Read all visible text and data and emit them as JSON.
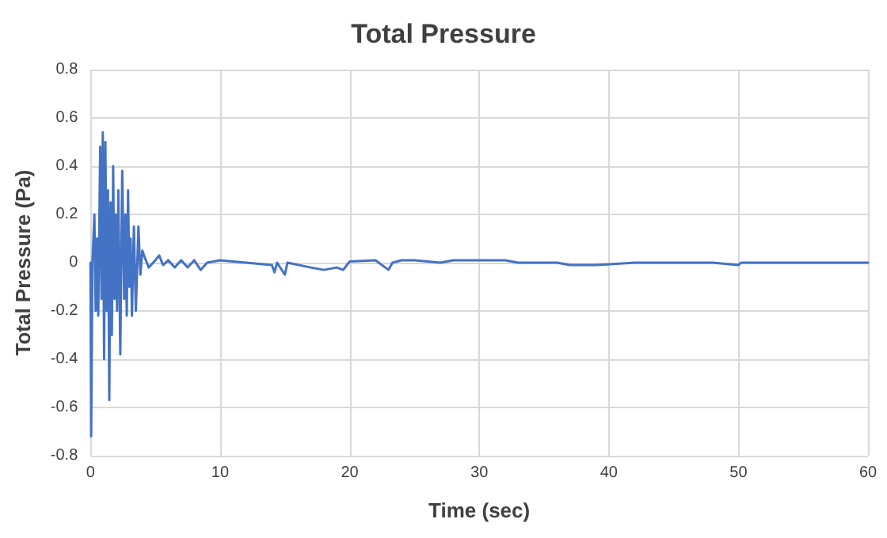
{
  "chart_data": {
    "type": "line",
    "title": "Total Pressure",
    "xlabel": "Time (sec)",
    "ylabel": "Total Pressure (Pa)",
    "xlim": [
      0,
      60
    ],
    "xticks": [
      0,
      10,
      20,
      30,
      40,
      50,
      60
    ],
    "ylim": [
      -0.8,
      0.8
    ],
    "yticks": [
      -0.8,
      -0.6,
      -0.4,
      -0.2,
      0,
      0.2,
      0.4,
      0.6,
      0.8
    ],
    "grid": true,
    "marker": "none",
    "line_style": "solid",
    "series": [
      {
        "color": "#4472c4",
        "x": [
          0,
          0.05,
          0.15,
          0.3,
          0.4,
          0.5,
          0.6,
          0.75,
          0.85,
          0.95,
          1.05,
          1.15,
          1.25,
          1.35,
          1.45,
          1.55,
          1.65,
          1.75,
          1.85,
          1.95,
          2.05,
          2.15,
          2.3,
          2.45,
          2.6,
          2.7,
          2.8,
          2.9,
          3.0,
          3.1,
          3.2,
          3.35,
          3.5,
          3.7,
          3.85,
          4.0,
          4.2,
          4.5,
          5.0,
          5.3,
          5.6,
          6,
          6.5,
          7,
          7.5,
          8,
          8.5,
          9,
          10,
          12,
          14,
          14.2,
          14.4,
          15,
          15.2,
          17,
          18,
          19,
          19.5,
          20,
          22,
          23,
          23.3,
          24,
          25,
          27,
          28,
          30,
          32,
          33,
          36,
          37,
          39,
          42,
          45,
          48,
          50,
          50.2,
          55,
          60
        ],
        "values": [
          0,
          -0.72,
          0,
          0.2,
          -0.2,
          0.1,
          -0.22,
          0.48,
          -0.15,
          0.54,
          -0.4,
          0.5,
          -0.2,
          0.3,
          -0.57,
          0.25,
          -0.3,
          0.4,
          -0.15,
          0.2,
          -0.2,
          0.3,
          -0.38,
          0.38,
          -0.15,
          0.2,
          -0.22,
          0.3,
          -0.1,
          0.1,
          -0.22,
          0.15,
          -0.2,
          0.15,
          -0.05,
          0.05,
          0.02,
          -0.02,
          0.01,
          0.03,
          -0.01,
          0.01,
          -0.02,
          0.01,
          -0.02,
          0.01,
          -0.03,
          0,
          0.01,
          0,
          -0.01,
          -0.04,
          0,
          -0.05,
          0,
          -0.02,
          -0.03,
          -0.02,
          -0.03,
          0.005,
          0.01,
          -0.03,
          0,
          0.01,
          0.01,
          0,
          0.01,
          0.01,
          0.01,
          0,
          0,
          -0.01,
          -0.01,
          0,
          0,
          0,
          -0.01,
          0,
          0,
          0
        ]
      }
    ]
  }
}
